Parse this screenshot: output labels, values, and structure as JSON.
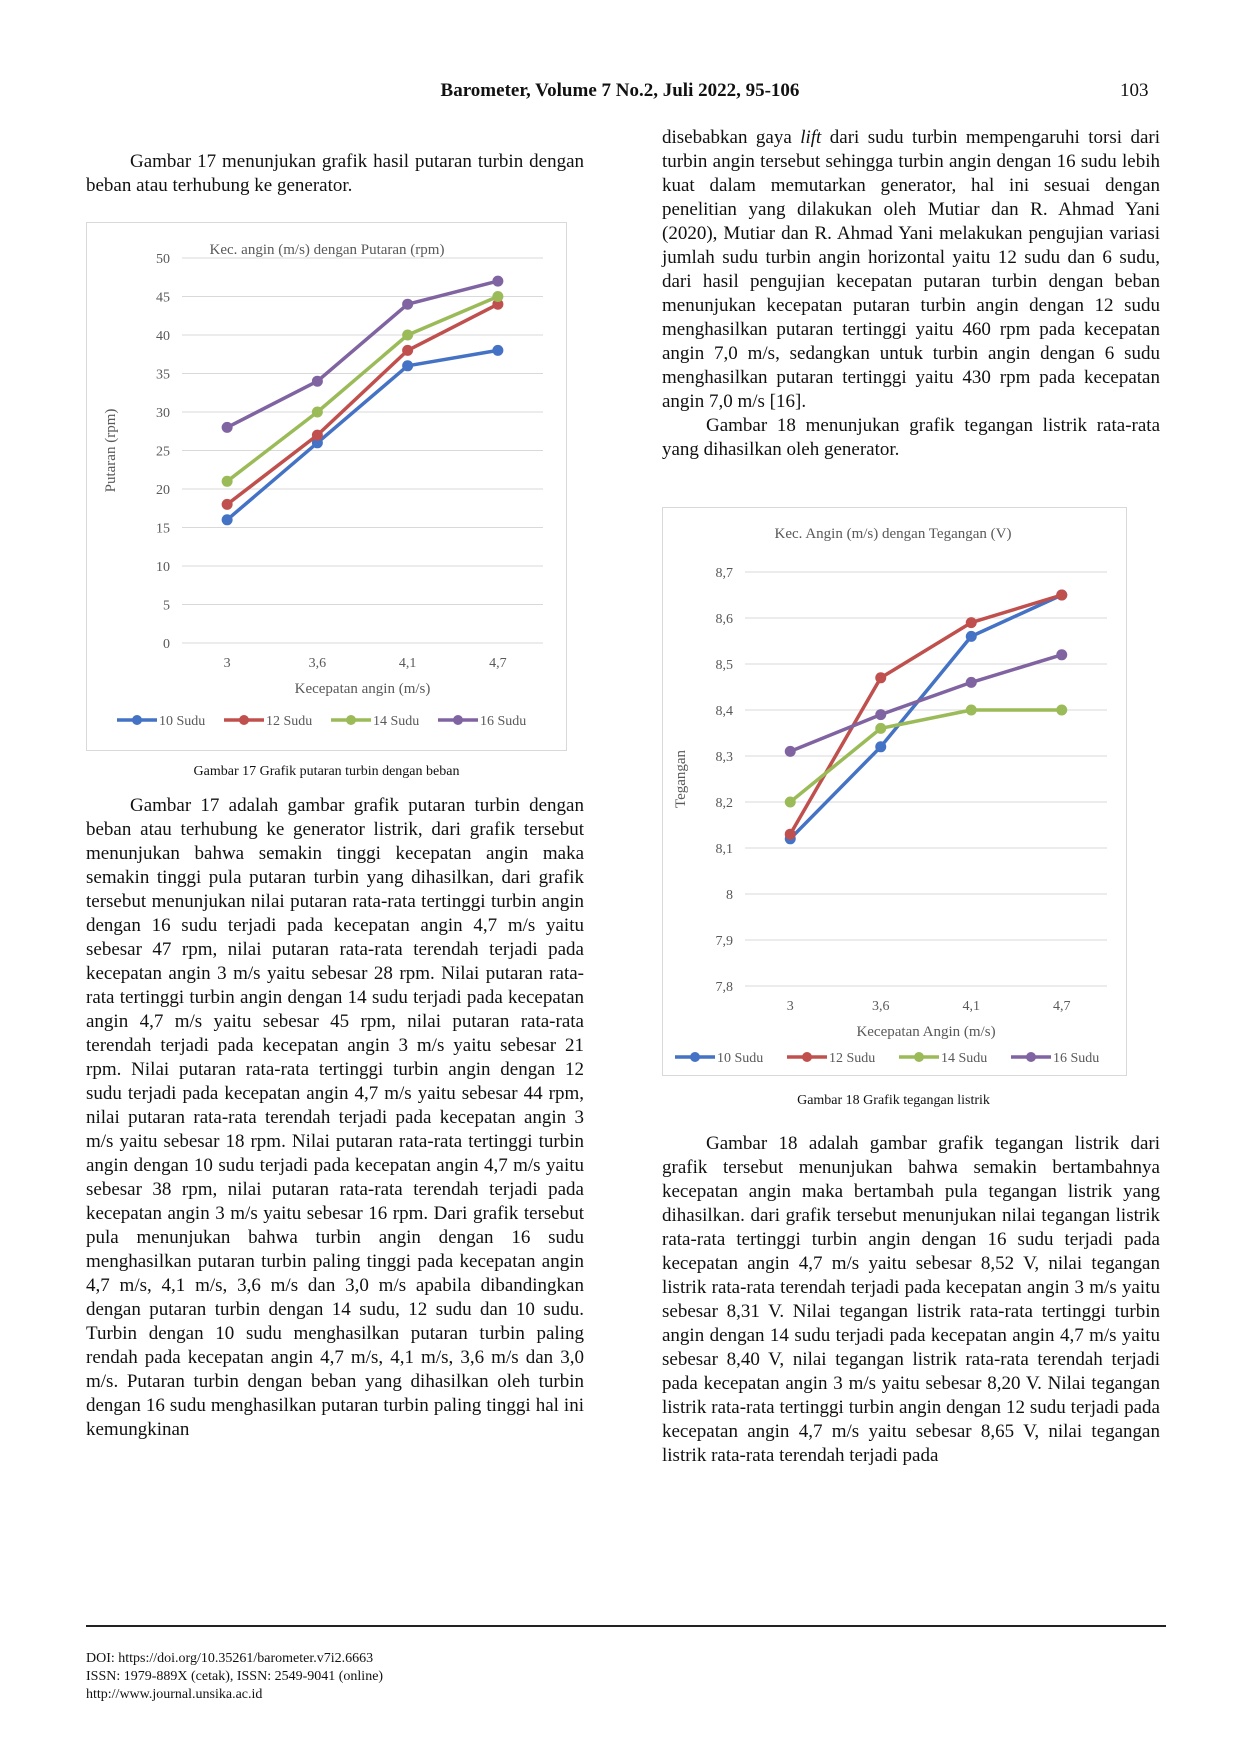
{
  "header": {
    "title": "Barometer, Volume 7 No.2, Juli 2022, 95-106",
    "page_number": "103"
  },
  "left_column": {
    "intro": "Gambar 17 menunjukan grafik hasil putaran turbin dengan beban atau terhubung ke generator.",
    "figure17_caption": "Gambar 17 Grafik putaran turbin dengan beban",
    "body": "Gambar 17 adalah gambar grafik putaran turbin dengan beban atau terhubung ke generator listrik, dari grafik tersebut menunjukan bahwa semakin tinggi kecepatan angin maka semakin tinggi pula putaran turbin yang dihasilkan, dari grafik tersebut menunjukan nilai putaran rata-rata tertinggi turbin angin dengan 16 sudu terjadi pada kecepatan angin 4,7 m/s yaitu sebesar 47 rpm, nilai putaran rata-rata terendah terjadi pada kecepatan angin 3 m/s yaitu sebesar 28 rpm. Nilai putaran rata-rata tertinggi turbin angin dengan 14 sudu terjadi pada kecepatan angin 4,7 m/s yaitu sebesar 45 rpm, nilai putaran rata-rata terendah terjadi pada kecepatan angin 3 m/s yaitu sebesar 21 rpm. Nilai putaran rata-rata tertinggi turbin angin dengan 12 sudu terjadi pada kecepatan angin 4,7 m/s yaitu sebesar 44 rpm, nilai putaran rata-rata terendah terjadi pada kecepatan angin 3 m/s yaitu sebesar 18 rpm. Nilai putaran rata-rata tertinggi turbin angin dengan 10 sudu terjadi pada kecepatan angin 4,7 m/s yaitu sebesar 38 rpm, nilai putaran rata-rata terendah terjadi pada kecepatan angin 3 m/s yaitu sebesar 16 rpm. Dari grafik tersebut pula menunjukan bahwa turbin angin dengan 16 sudu menghasilkan putaran turbin paling tinggi pada kecepatan angin 4,7 m/s, 4,1 m/s, 3,6 m/s dan 3,0 m/s apabila dibandingkan dengan putaran turbin dengan 14 sudu, 12 sudu dan 10 sudu. Turbin dengan 10 sudu menghasilkan putaran turbin paling rendah pada kecepatan angin 4,7 m/s, 4,1 m/s, 3,6 m/s dan 3,0 m/s. Putaran turbin dengan beban yang dihasilkan oleh turbin dengan 16 sudu menghasilkan putaran turbin paling tinggi hal ini kemungkinan"
  },
  "right_column": {
    "para1_before": "disebabkan gaya ",
    "para1_italic": "lift",
    "para1_after": " dari sudu turbin mempengaruhi torsi dari turbin angin tersebut sehingga turbin angin dengan 16 sudu lebih kuat dalam memutarkan generator, hal ini sesuai dengan penelitian yang dilakukan oleh Mutiar dan R. Ahmad Yani (2020), Mutiar dan R. Ahmad Yani melakukan pengujian variasi jumlah sudu turbin angin horizontal yaitu 12 sudu dan 6 sudu, dari hasil pengujian kecepatan putaran turbin dengan beban  menunjukan kecepatan putaran turbin angin dengan 12 sudu menghasilkan putaran tertinggi yaitu 460 rpm pada kecepatan angin 7,0 m/s, sedangkan untuk turbin angin dengan 6 sudu menghasilkan putaran tertinggi yaitu 430 rpm pada kecepatan angin 7,0 m/s [16].",
    "para2": "Gambar 18 menunjukan grafik tegangan listrik rata-rata yang dihasilkan oleh generator.",
    "figure18_caption": "Gambar 18 Grafik tegangan listrik",
    "body": "Gambar 18 adalah gambar grafik tegangan listrik dari grafik tersebut menunjukan bahwa semakin bertambahnya kecepatan angin maka bertambah pula tegangan listrik yang dihasilkan. dari grafik tersebut menunjukan nilai tegangan listrik rata-rata tertinggi turbin angin dengan 16 sudu terjadi pada kecepatan angin 4,7 m/s yaitu sebesar 8,52 V, nilai tegangan listrik rata-rata terendah terjadi pada kecepatan angin 3 m/s yaitu sebesar 8,31 V. Nilai tegangan listrik rata-rata tertinggi turbin angin dengan 14 sudu terjadi pada kecepatan angin 4,7 m/s yaitu sebesar 8,40 V, nilai tegangan listrik rata-rata terendah terjadi pada kecepatan angin 3 m/s yaitu sebesar 8,20 V. Nilai tegangan listrik rata-rata tertinggi turbin angin dengan 12 sudu terjadi pada kecepatan angin 4,7 m/s yaitu sebesar 8,65 V, nilai tegangan listrik rata-rata terendah terjadi pada"
  },
  "footer": {
    "doi": "DOI: https://doi.org/10.35261/barometer.v7i2.6663",
    "issn": "ISSN: 1979-889X (cetak), ISSN: 2549-9041 (online)",
    "url": "http://www.journal.unsika.ac.id"
  },
  "chart_data": [
    {
      "type": "line",
      "title": "Kec. angin (m/s) dengan Putaran (rpm)",
      "xlabel": "Kecepatan angin (m/s)",
      "ylabel": "Putaran (rpm)",
      "categories": [
        "3",
        "3,6",
        "4,1",
        "4,7"
      ],
      "ylim": [
        0,
        50
      ],
      "yticks": [
        "0",
        "5",
        "10",
        "15",
        "20",
        "25",
        "30",
        "35",
        "40",
        "45",
        "50"
      ],
      "grid": true,
      "legend": "bottom",
      "series": [
        {
          "name": "10 Sudu",
          "color": "#4472c4",
          "values": [
            16,
            26,
            36,
            38
          ]
        },
        {
          "name": "12 Sudu",
          "color": "#c0504d",
          "values": [
            18,
            27,
            38,
            44
          ]
        },
        {
          "name": "14 Sudu",
          "color": "#9bbb59",
          "values": [
            21,
            30,
            40,
            45
          ]
        },
        {
          "name": "16 Sudu",
          "color": "#8064a2",
          "values": [
            28,
            34,
            44,
            47
          ]
        }
      ]
    },
    {
      "type": "line",
      "title": "Kec. Angin (m/s) dengan Tegangan (V)",
      "xlabel": "Kecepatan Angin (m/s)",
      "ylabel": "Tegangan",
      "categories": [
        "3",
        "3,6",
        "4,1",
        "4,7"
      ],
      "ylim": [
        7.8,
        8.7
      ],
      "yticks": [
        "7,8",
        "7,9",
        "8",
        "8,1",
        "8,2",
        "8,3",
        "8,4",
        "8,5",
        "8,6",
        "8,7"
      ],
      "grid": true,
      "legend": "bottom",
      "series": [
        {
          "name": "10 Sudu",
          "color": "#4472c4",
          "values": [
            8.12,
            8.32,
            8.56,
            8.65
          ]
        },
        {
          "name": "12 Sudu",
          "color": "#c0504d",
          "values": [
            8.13,
            8.47,
            8.59,
            8.65
          ]
        },
        {
          "name": "14 Sudu",
          "color": "#9bbb59",
          "values": [
            8.2,
            8.36,
            8.4,
            8.4
          ]
        },
        {
          "name": "16 Sudu",
          "color": "#8064a2",
          "values": [
            8.31,
            8.39,
            8.46,
            8.52
          ]
        }
      ]
    }
  ]
}
